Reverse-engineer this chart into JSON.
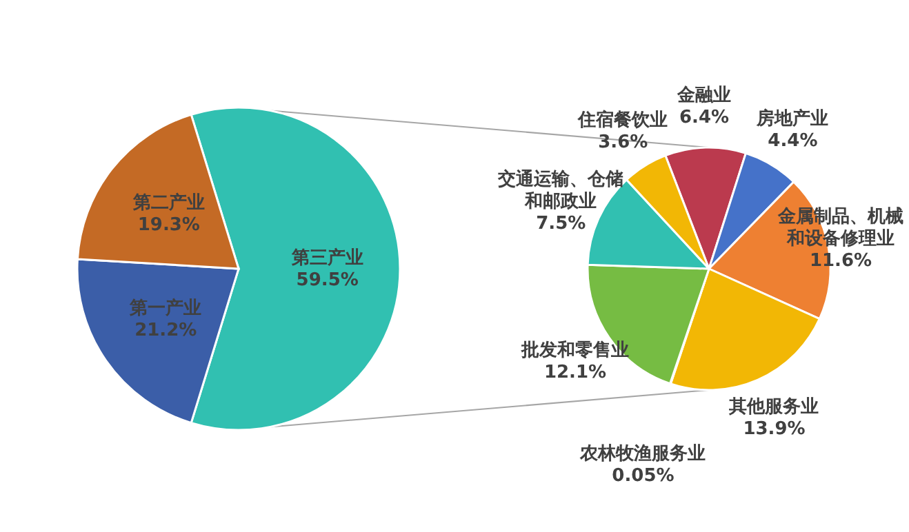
{
  "chart_data": [
    {
      "type": "pie",
      "categories": [
        "第三产业",
        "第一产业",
        "第二产业"
      ],
      "values": [
        59.5,
        21.2,
        19.3
      ],
      "colors": [
        "#31c0b1",
        "#3b5ea8",
        "#c46a25"
      ],
      "value_labels": [
        "59.5%",
        "21.2%",
        "19.3%"
      ]
    },
    {
      "type": "pie",
      "categories": [
        "金融业",
        "房地产业",
        "金属制品、机械和设备修理业",
        "其他服务业",
        "农林牧渔服务业",
        "批发和零售业",
        "交通运输、仓储和邮政业",
        "住宿餐饮业"
      ],
      "values": [
        6.4,
        4.4,
        11.6,
        13.9,
        0.05,
        12.1,
        7.5,
        3.6
      ],
      "colors": [
        "#bb3a4e",
        "#4572c9",
        "#ee8032",
        "#f2b705",
        "#a5a5a5",
        "#76bc43",
        "#31c0b1",
        "#f2b705"
      ],
      "value_labels": [
        "6.4%",
        "4.4%",
        "11.6%",
        "13.9%",
        "0.05%",
        "12.1%",
        "7.5%",
        "3.6%"
      ]
    }
  ]
}
